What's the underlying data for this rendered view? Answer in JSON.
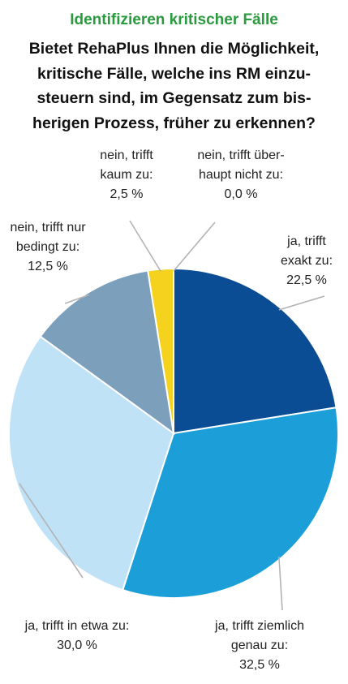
{
  "header": {
    "subtitle": "Identifizieren kritischer Fälle",
    "title_lines": [
      "Bietet RehaPlus Ihnen die Möglichkeit,",
      "kritische Fälle, welche ins RM einzu-",
      "steuern sind, im Gegensatz zum bis-",
      "herigen Prozess, früher zu erkennen?"
    ]
  },
  "chart_data": {
    "type": "pie",
    "unit": "%",
    "slices": [
      {
        "label_lines": [
          "ja, trifft",
          "exakt zu:"
        ],
        "value": 22.5,
        "value_text": "22,5 %",
        "color": "#0a4d94"
      },
      {
        "label_lines": [
          "ja, trifft ziemlich",
          "genau zu:"
        ],
        "value": 32.5,
        "value_text": "32,5 %",
        "color": "#1c9fd9"
      },
      {
        "label_lines": [
          "ja, trifft in etwa zu:"
        ],
        "value": 30.0,
        "value_text": "30,0 %",
        "color": "#bfe2f7"
      },
      {
        "label_lines": [
          "nein, trifft nur",
          "bedingt zu:"
        ],
        "value": 12.5,
        "value_text": "12,5 %",
        "color": "#7c9fbc"
      },
      {
        "label_lines": [
          "nein, trifft",
          "kaum zu:"
        ],
        "value": 2.5,
        "value_text": "2,5 %",
        "color": "#f4d21d"
      },
      {
        "label_lines": [
          "nein, trifft über-",
          "haupt nicht zu:"
        ],
        "value": 0.0,
        "value_text": "0,0 %",
        "color": "#e0e0e0"
      }
    ]
  }
}
